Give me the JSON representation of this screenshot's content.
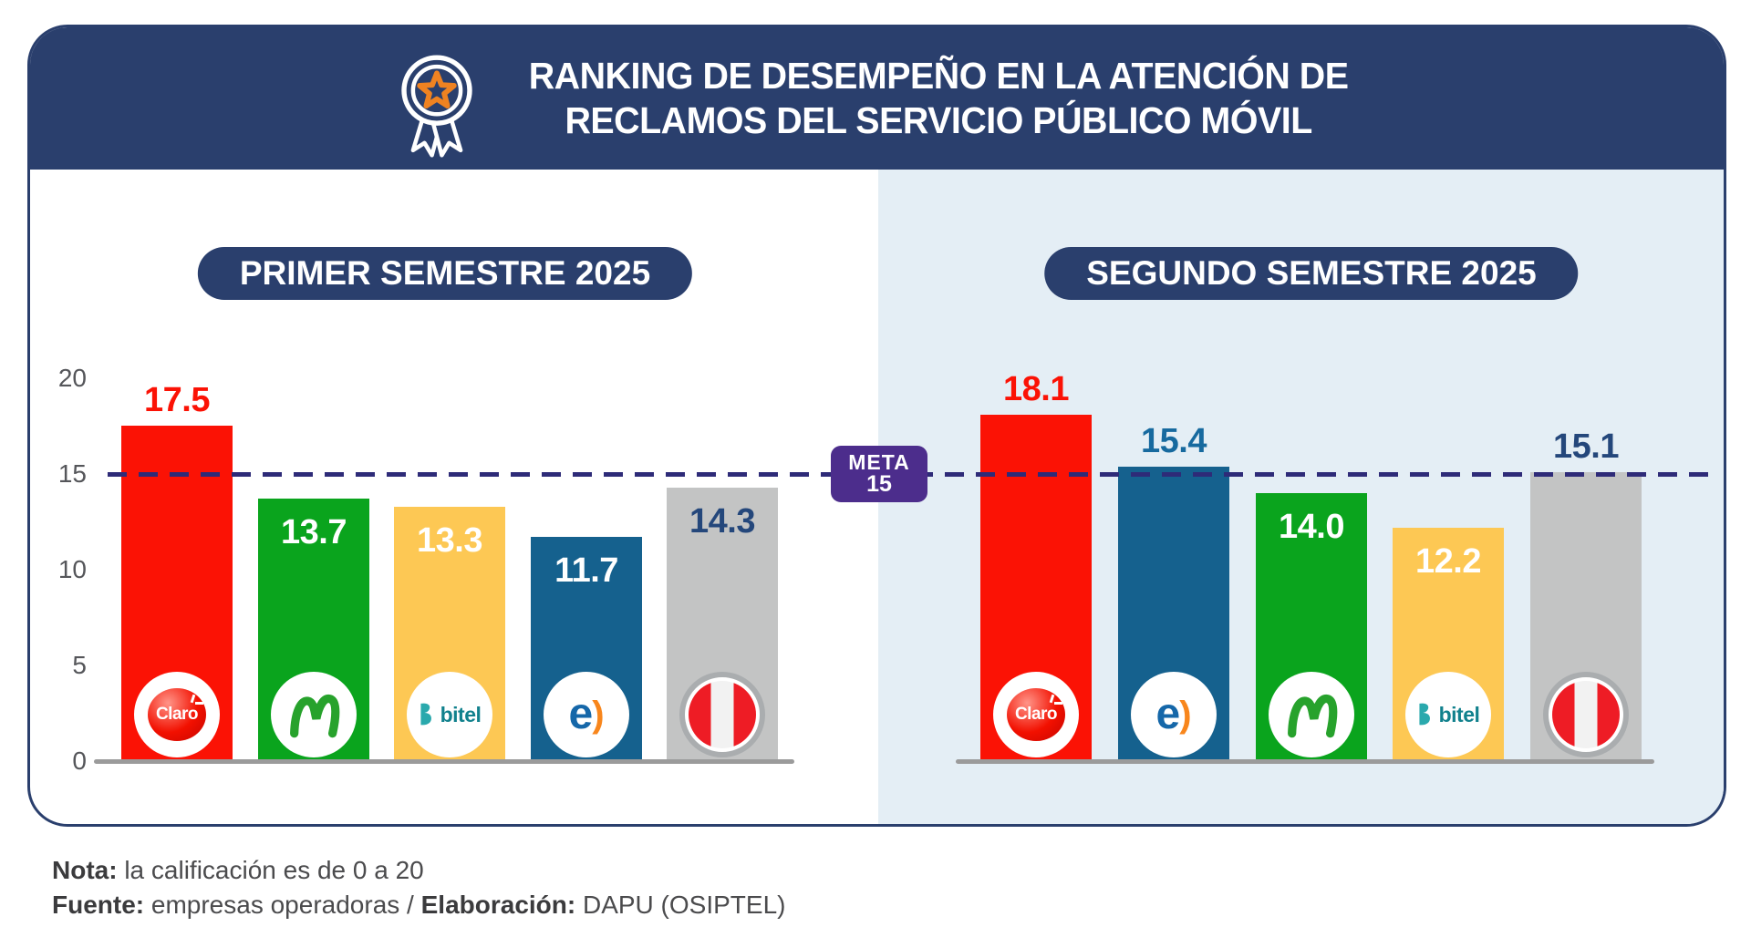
{
  "header": {
    "title_line1": "RANKING DE DESEMPEÑO EN LA ATENCIÓN DE",
    "title_line2": "RECLAMOS DEL SERVICIO PÚBLICO MÓVIL",
    "medal_icon": "award-medal-icon"
  },
  "goal_badge": {
    "label": "META",
    "value": "15"
  },
  "footer": {
    "note_label": "Nota:",
    "note_text": " la calificación es de 0 a 20",
    "source_label": "Fuente:",
    "source_text": " empresas operadoras / ",
    "elab_label": "Elaboración:",
    "elab_text": " DAPU (OSIPTEL)"
  },
  "colors": {
    "navy": "#2a3f6d",
    "panel_blue": "#e4eef5",
    "goal_purple": "#4c2d8c",
    "goal_line": "#2e2b78",
    "axis_gray": "#55565a",
    "baseline_gray": "#9b9b9b",
    "claro_red": "#fb1205",
    "movistar_green": "#0aa41d",
    "bitel_yellow": "#fdc854",
    "entel_blue": "#15618e",
    "peru_gray": "#c3c4c4",
    "label_navy": "#24477b",
    "label_blue": "#176a9f"
  },
  "chart_data": {
    "type": "bar",
    "title": "RANKING DE DESEMPEÑO EN LA ATENCIÓN DE RECLAMOS DEL SERVICIO PÚBLICO MÓVIL",
    "ylabel": "",
    "xlabel": "",
    "ylim": [
      0,
      20
    ],
    "yticks": [
      0,
      5,
      10,
      15,
      20
    ],
    "grid": false,
    "goal_line": {
      "value": 15,
      "label": "META 15"
    },
    "charts": [
      {
        "label": "PRIMER SEMESTRE 2025",
        "bars": [
          {
            "name": "Claro",
            "logo": "claro",
            "value": 17.5,
            "display": "17.5",
            "bar_color": "#fb1205",
            "label_pos": "above",
            "label_color": "#fb1205"
          },
          {
            "name": "Movistar",
            "logo": "movistar",
            "value": 13.7,
            "display": "13.7",
            "bar_color": "#0aa41d",
            "label_pos": "inside",
            "label_color": "#ffffff"
          },
          {
            "name": "Bitel",
            "logo": "bitel",
            "value": 13.3,
            "display": "13.3",
            "bar_color": "#fdc854",
            "label_pos": "inside",
            "label_color": "#ffffff"
          },
          {
            "name": "Entel",
            "logo": "entel",
            "value": 11.7,
            "display": "11.7",
            "bar_color": "#15618e",
            "label_pos": "inside",
            "label_color": "#ffffff"
          },
          {
            "name": "Perú",
            "logo": "peru",
            "value": 14.3,
            "display": "14.3",
            "bar_color": "#c3c4c4",
            "label_pos": "inside",
            "label_color": "#24477b"
          }
        ]
      },
      {
        "label": "SEGUNDO SEMESTRE 2025",
        "bars": [
          {
            "name": "Claro",
            "logo": "claro",
            "value": 18.1,
            "display": "18.1",
            "bar_color": "#fb1205",
            "label_pos": "above",
            "label_color": "#fb1205"
          },
          {
            "name": "Entel",
            "logo": "entel",
            "value": 15.4,
            "display": "15.4",
            "bar_color": "#15618e",
            "label_pos": "above",
            "label_color": "#176a9f"
          },
          {
            "name": "Movistar",
            "logo": "movistar",
            "value": 14.0,
            "display": "14.0",
            "bar_color": "#0aa41d",
            "label_pos": "inside",
            "label_color": "#ffffff"
          },
          {
            "name": "Bitel",
            "logo": "bitel",
            "value": 12.2,
            "display": "12.2",
            "bar_color": "#fdc854",
            "label_pos": "inside",
            "label_color": "#ffffff"
          },
          {
            "name": "Perú",
            "logo": "peru",
            "value": 15.1,
            "display": "15.1",
            "bar_color": "#c3c4c4",
            "label_pos": "above",
            "label_color": "#24477b"
          }
        ]
      }
    ]
  }
}
